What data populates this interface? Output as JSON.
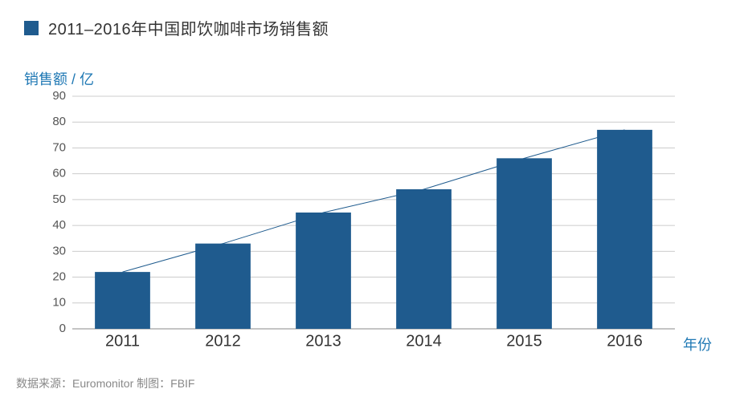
{
  "title": {
    "square_color": "#1f5b8e",
    "text": "2011–2016年中国即饮咖啡市场销售额",
    "text_color": "#333333",
    "font_size": 20
  },
  "chart": {
    "type": "bar+line",
    "y_axis_label": "销售额 / 亿",
    "x_axis_label": "年份",
    "axis_label_color": "#1f78b4",
    "categories": [
      "2011",
      "2012",
      "2013",
      "2014",
      "2015",
      "2016"
    ],
    "values": [
      22,
      33,
      45,
      54,
      66,
      77
    ],
    "ylim": [
      0,
      90
    ],
    "ytick_step": 10,
    "bar_color": "#1f5b8e",
    "bar_width": 0.55,
    "line_color": "#1f5b8e",
    "line_width": 1,
    "grid_color": "#cccccc",
    "axis_color": "#888888",
    "background_color": "#ffffff",
    "tick_font_size_y": 15,
    "tick_font_size_x": 20,
    "tick_color": "#555555"
  },
  "source": {
    "text": "数据来源：Euromonitor   制图：FBIF",
    "color": "#888888",
    "font_size": 14
  }
}
